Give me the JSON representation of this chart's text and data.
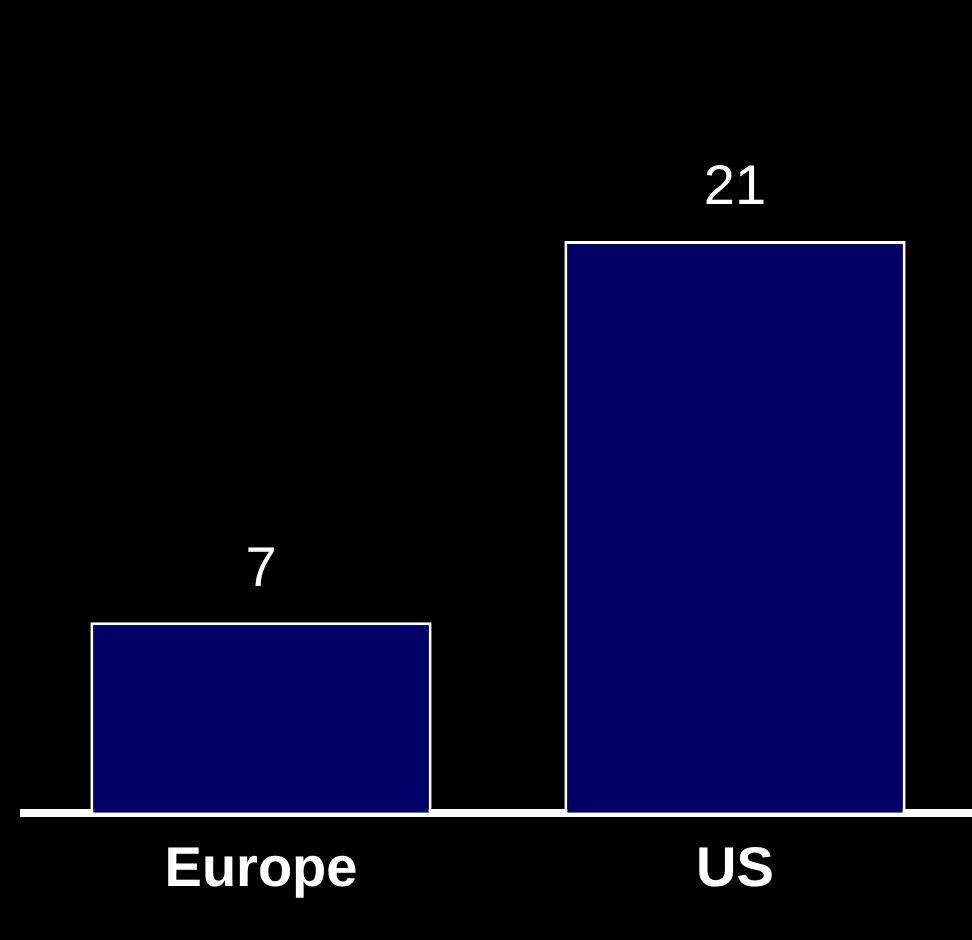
{
  "chart_data": {
    "type": "bar",
    "categories": [
      "Europe",
      "US"
    ],
    "values": [
      7,
      21
    ],
    "color": "#000066",
    "data_labels": true,
    "tick_labels": "x",
    "grid": false,
    "legend": false
  }
}
